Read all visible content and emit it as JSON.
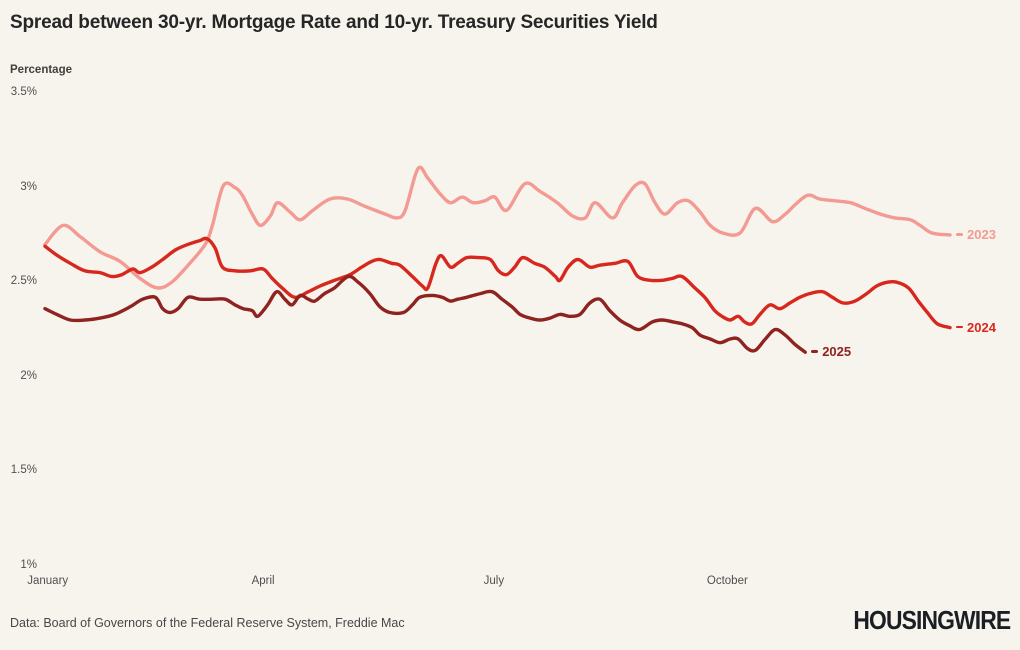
{
  "header": {
    "title": "Spread between 30-yr. Mortgage Rate and 10-yr. Treasury Securities Yield",
    "y_axis_label": "Percentage"
  },
  "footer": {
    "source": "Data: Board of Governors of the Federal Reserve System, Freddie Mac",
    "logo": "HOUSINGWIRE"
  },
  "colors": {
    "background": "#f7f4ee",
    "series_2023": "#f39a92",
    "series_2024": "#d7281e",
    "series_2025": "#8f2320",
    "title_text": "#262626",
    "tick_text": "#4f4f4f"
  },
  "chart_data": {
    "type": "line",
    "title": "Spread between 30-yr. Mortgage Rate and 10-yr. Treasury Securities Yield",
    "ylabel": "Percentage",
    "y_unit": "percent",
    "x_unit": "fraction of year (0 = early January, 1 = late December)",
    "ylim": [
      1.0,
      3.5
    ],
    "grid": false,
    "legend_position": "end-of-line labels",
    "y_ticks": [
      {
        "label": "3.5%",
        "value": 3.5
      },
      {
        "label": "3%",
        "value": 3.0
      },
      {
        "label": "2.5%",
        "value": 2.5
      },
      {
        "label": "2%",
        "value": 2.0
      },
      {
        "label": "1.5%",
        "value": 1.5
      },
      {
        "label": "1%",
        "value": 1.0
      }
    ],
    "x_ticks": [
      {
        "label": "January",
        "t": 0.003
      },
      {
        "label": "April",
        "t": 0.241
      },
      {
        "label": "July",
        "t": 0.496
      },
      {
        "label": "October",
        "t": 0.754
      }
    ],
    "series": [
      {
        "name": "2023",
        "color": "#f39a92",
        "points": [
          [
            0.0,
            2.7
          ],
          [
            0.02,
            2.8
          ],
          [
            0.039,
            2.74
          ],
          [
            0.061,
            2.66
          ],
          [
            0.083,
            2.61
          ],
          [
            0.105,
            2.52
          ],
          [
            0.124,
            2.47
          ],
          [
            0.14,
            2.5
          ],
          [
            0.16,
            2.6
          ],
          [
            0.177,
            2.7
          ],
          [
            0.185,
            2.8
          ],
          [
            0.197,
            3.01
          ],
          [
            0.21,
            3.0
          ],
          [
            0.218,
            2.96
          ],
          [
            0.229,
            2.86
          ],
          [
            0.238,
            2.8
          ],
          [
            0.249,
            2.85
          ],
          [
            0.257,
            2.92
          ],
          [
            0.271,
            2.87
          ],
          [
            0.282,
            2.83
          ],
          [
            0.296,
            2.88
          ],
          [
            0.315,
            2.94
          ],
          [
            0.334,
            2.94
          ],
          [
            0.354,
            2.9
          ],
          [
            0.376,
            2.86
          ],
          [
            0.389,
            2.84
          ],
          [
            0.398,
            2.88
          ],
          [
            0.412,
            3.1
          ],
          [
            0.423,
            3.05
          ],
          [
            0.436,
            2.97
          ],
          [
            0.448,
            2.92
          ],
          [
            0.461,
            2.95
          ],
          [
            0.473,
            2.92
          ],
          [
            0.486,
            2.93
          ],
          [
            0.497,
            2.95
          ],
          [
            0.51,
            2.88
          ],
          [
            0.53,
            3.02
          ],
          [
            0.547,
            2.98
          ],
          [
            0.566,
            2.92
          ],
          [
            0.583,
            2.85
          ],
          [
            0.597,
            2.84
          ],
          [
            0.608,
            2.92
          ],
          [
            0.627,
            2.84
          ],
          [
            0.638,
            2.92
          ],
          [
            0.652,
            3.01
          ],
          [
            0.663,
            3.02
          ],
          [
            0.674,
            2.92
          ],
          [
            0.685,
            2.86
          ],
          [
            0.699,
            2.92
          ],
          [
            0.711,
            2.93
          ],
          [
            0.724,
            2.87
          ],
          [
            0.735,
            2.8
          ],
          [
            0.749,
            2.76
          ],
          [
            0.768,
            2.76
          ],
          [
            0.785,
            2.89
          ],
          [
            0.804,
            2.82
          ],
          [
            0.818,
            2.86
          ],
          [
            0.829,
            2.91
          ],
          [
            0.843,
            2.96
          ],
          [
            0.856,
            2.94
          ],
          [
            0.873,
            2.93
          ],
          [
            0.89,
            2.92
          ],
          [
            0.906,
            2.89
          ],
          [
            0.923,
            2.86
          ],
          [
            0.939,
            2.84
          ],
          [
            0.956,
            2.83
          ],
          [
            0.967,
            2.8
          ],
          [
            0.98,
            2.76
          ],
          [
            1.0,
            2.75
          ]
        ]
      },
      {
        "name": "2024",
        "color": "#d7281e",
        "points": [
          [
            0.0,
            2.69
          ],
          [
            0.014,
            2.64
          ],
          [
            0.028,
            2.6
          ],
          [
            0.044,
            2.56
          ],
          [
            0.061,
            2.55
          ],
          [
            0.074,
            2.53
          ],
          [
            0.085,
            2.54
          ],
          [
            0.097,
            2.57
          ],
          [
            0.105,
            2.55
          ],
          [
            0.118,
            2.58
          ],
          [
            0.13,
            2.62
          ],
          [
            0.144,
            2.67
          ],
          [
            0.158,
            2.7
          ],
          [
            0.171,
            2.72
          ],
          [
            0.179,
            2.73
          ],
          [
            0.188,
            2.68
          ],
          [
            0.196,
            2.58
          ],
          [
            0.21,
            2.56
          ],
          [
            0.227,
            2.56
          ],
          [
            0.241,
            2.57
          ],
          [
            0.251,
            2.52
          ],
          [
            0.262,
            2.47
          ],
          [
            0.276,
            2.42
          ],
          [
            0.291,
            2.45
          ],
          [
            0.304,
            2.48
          ],
          [
            0.32,
            2.51
          ],
          [
            0.337,
            2.54
          ],
          [
            0.35,
            2.58
          ],
          [
            0.361,
            2.61
          ],
          [
            0.37,
            2.62
          ],
          [
            0.383,
            2.6
          ],
          [
            0.392,
            2.59
          ],
          [
            0.406,
            2.53
          ],
          [
            0.417,
            2.48
          ],
          [
            0.423,
            2.47
          ],
          [
            0.432,
            2.6
          ],
          [
            0.438,
            2.64
          ],
          [
            0.448,
            2.58
          ],
          [
            0.456,
            2.6
          ],
          [
            0.466,
            2.63
          ],
          [
            0.479,
            2.63
          ],
          [
            0.492,
            2.62
          ],
          [
            0.501,
            2.56
          ],
          [
            0.51,
            2.54
          ],
          [
            0.519,
            2.58
          ],
          [
            0.528,
            2.63
          ],
          [
            0.541,
            2.6
          ],
          [
            0.552,
            2.58
          ],
          [
            0.564,
            2.53
          ],
          [
            0.569,
            2.51
          ],
          [
            0.578,
            2.58
          ],
          [
            0.589,
            2.62
          ],
          [
            0.602,
            2.58
          ],
          [
            0.613,
            2.59
          ],
          [
            0.63,
            2.6
          ],
          [
            0.644,
            2.61
          ],
          [
            0.655,
            2.53
          ],
          [
            0.669,
            2.51
          ],
          [
            0.682,
            2.51
          ],
          [
            0.693,
            2.52
          ],
          [
            0.704,
            2.53
          ],
          [
            0.718,
            2.47
          ],
          [
            0.729,
            2.42
          ],
          [
            0.74,
            2.35
          ],
          [
            0.748,
            2.32
          ],
          [
            0.757,
            2.3
          ],
          [
            0.766,
            2.32
          ],
          [
            0.773,
            2.29
          ],
          [
            0.781,
            2.28
          ],
          [
            0.79,
            2.33
          ],
          [
            0.801,
            2.38
          ],
          [
            0.812,
            2.36
          ],
          [
            0.823,
            2.39
          ],
          [
            0.834,
            2.42
          ],
          [
            0.845,
            2.44
          ],
          [
            0.859,
            2.45
          ],
          [
            0.87,
            2.42
          ],
          [
            0.882,
            2.39
          ],
          [
            0.895,
            2.4
          ],
          [
            0.908,
            2.44
          ],
          [
            0.919,
            2.48
          ],
          [
            0.931,
            2.5
          ],
          [
            0.941,
            2.5
          ],
          [
            0.954,
            2.47
          ],
          [
            0.965,
            2.4
          ],
          [
            0.975,
            2.34
          ],
          [
            0.986,
            2.28
          ],
          [
            1.0,
            2.26
          ]
        ]
      },
      {
        "name": "2025",
        "color": "#8f2320",
        "points": [
          [
            0.0,
            2.36
          ],
          [
            0.013,
            2.33
          ],
          [
            0.028,
            2.3
          ],
          [
            0.044,
            2.3
          ],
          [
            0.061,
            2.31
          ],
          [
            0.077,
            2.33
          ],
          [
            0.094,
            2.37
          ],
          [
            0.108,
            2.41
          ],
          [
            0.122,
            2.42
          ],
          [
            0.13,
            2.36
          ],
          [
            0.138,
            2.34
          ],
          [
            0.147,
            2.36
          ],
          [
            0.158,
            2.42
          ],
          [
            0.171,
            2.41
          ],
          [
            0.186,
            2.41
          ],
          [
            0.199,
            2.41
          ],
          [
            0.21,
            2.38
          ],
          [
            0.219,
            2.36
          ],
          [
            0.229,
            2.35
          ],
          [
            0.235,
            2.32
          ],
          [
            0.246,
            2.38
          ],
          [
            0.256,
            2.45
          ],
          [
            0.265,
            2.41
          ],
          [
            0.273,
            2.38
          ],
          [
            0.282,
            2.43
          ],
          [
            0.291,
            2.41
          ],
          [
            0.298,
            2.4
          ],
          [
            0.309,
            2.44
          ],
          [
            0.32,
            2.47
          ],
          [
            0.335,
            2.53
          ],
          [
            0.346,
            2.5
          ],
          [
            0.359,
            2.44
          ],
          [
            0.37,
            2.37
          ],
          [
            0.381,
            2.34
          ],
          [
            0.396,
            2.34
          ],
          [
            0.406,
            2.38
          ],
          [
            0.414,
            2.42
          ],
          [
            0.428,
            2.43
          ],
          [
            0.439,
            2.42
          ],
          [
            0.448,
            2.4
          ],
          [
            0.456,
            2.41
          ],
          [
            0.466,
            2.42
          ],
          [
            0.481,
            2.44
          ],
          [
            0.494,
            2.45
          ],
          [
            0.505,
            2.41
          ],
          [
            0.516,
            2.37
          ],
          [
            0.525,
            2.33
          ],
          [
            0.536,
            2.31
          ],
          [
            0.547,
            2.3
          ],
          [
            0.558,
            2.31
          ],
          [
            0.569,
            2.33
          ],
          [
            0.58,
            2.32
          ],
          [
            0.591,
            2.33
          ],
          [
            0.602,
            2.39
          ],
          [
            0.613,
            2.41
          ],
          [
            0.624,
            2.35
          ],
          [
            0.635,
            2.3
          ],
          [
            0.646,
            2.27
          ],
          [
            0.657,
            2.25
          ],
          [
            0.671,
            2.29
          ],
          [
            0.682,
            2.3
          ],
          [
            0.694,
            2.29
          ],
          [
            0.704,
            2.28
          ],
          [
            0.715,
            2.26
          ],
          [
            0.724,
            2.22
          ],
          [
            0.735,
            2.2
          ],
          [
            0.746,
            2.18
          ],
          [
            0.757,
            2.2
          ],
          [
            0.766,
            2.2
          ],
          [
            0.776,
            2.15
          ],
          [
            0.785,
            2.14
          ],
          [
            0.796,
            2.2
          ],
          [
            0.807,
            2.25
          ],
          [
            0.818,
            2.22
          ],
          [
            0.829,
            2.17
          ],
          [
            0.84,
            2.13
          ]
        ]
      }
    ]
  }
}
